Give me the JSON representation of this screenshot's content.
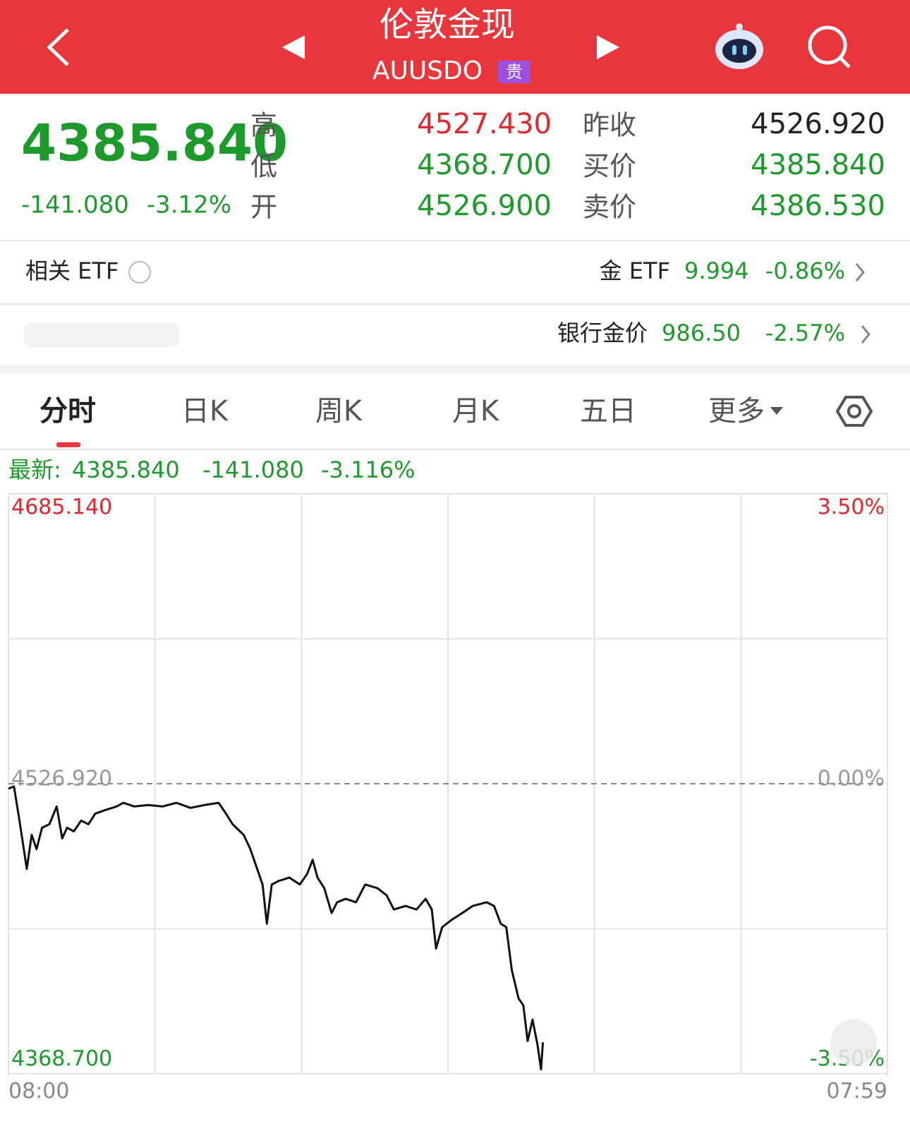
{
  "header": {
    "title": "伦敦金现",
    "code": "AUUSDO",
    "badge": "贵"
  },
  "quote": {
    "price": "4385.840",
    "change": "-141.080",
    "change_pct": "-3.12%",
    "stats": [
      {
        "label": "高",
        "value": "4527.430"
      },
      {
        "label": "低",
        "value": "4368.700"
      },
      {
        "label": "开",
        "value": "4526.900"
      },
      {
        "label": "昨收",
        "value": "4526.920"
      },
      {
        "label": "买价",
        "value": "4385.840"
      },
      {
        "label": "卖价",
        "value": "4386.530"
      }
    ]
  },
  "related": {
    "title": "相关 ETF",
    "items": [
      {
        "name": "金 ETF",
        "value": "9.994",
        "change": "-0.86%"
      },
      {
        "name": "银行金价",
        "value": "986.50",
        "change": "-2.57%"
      }
    ]
  },
  "tabs": [
    "分时",
    "日K",
    "周K",
    "月K",
    "五日",
    "更多"
  ],
  "latest": {
    "label": "最新:",
    "price": "4385.840",
    "change": "-141.080",
    "change_pct": "-3.116%"
  },
  "chart_data": {
    "type": "line",
    "color": "#111111",
    "x": [
      0,
      9,
      18,
      30,
      38,
      46,
      55,
      67,
      79,
      88,
      96,
      107,
      119,
      131,
      142,
      159,
      177,
      188,
      206,
      229,
      252,
      275,
      298,
      321,
      344,
      356,
      367,
      385,
      396,
      408,
      416,
      423,
      431,
      442,
      460,
      477,
      489,
      498,
      506,
      517,
      529,
      538,
      552,
      569,
      584,
      604,
      619,
      631,
      650,
      668,
      683,
      693,
      700,
      710,
      725,
      743,
      760,
      783,
      795,
      806,
      815,
      824,
      835,
      843,
      850,
      858,
      866,
      872,
      875
    ],
    "values": [
      4524.2,
      4525.4,
      4506.8,
      4480.4,
      4499.0,
      4491.2,
      4502.9,
      4504.8,
      4514.5,
      4497.1,
      4502.9,
      4500.9,
      4506.8,
      4504.8,
      4510.6,
      4512.6,
      4514.5,
      4516.5,
      4514.5,
      4515.3,
      4514.5,
      4516.5,
      4513.7,
      4515.3,
      4516.5,
      4510.6,
      4504.8,
      4499.0,
      4491.2,
      4479.6,
      4471.9,
      4450.5,
      4471.9,
      4473.8,
      4475.7,
      4471.9,
      4477.7,
      4485.4,
      4475.7,
      4469.9,
      4456.3,
      4462.2,
      4464.1,
      4462.2,
      4471.9,
      4469.9,
      4466.0,
      4458.3,
      4460.2,
      4458.3,
      4464.1,
      4458.3,
      4437.0,
      4448.6,
      4452.5,
      4456.3,
      4460.2,
      4462.2,
      4460.2,
      4450.5,
      4448.6,
      4425.3,
      4409.8,
      4405.9,
      4386.5,
      4398.2,
      4384.6,
      4371.0,
      4385.8
    ],
    "xlim": [
      0,
      1439
    ],
    "xticks": [
      {
        "value": 0,
        "label": "08:00"
      },
      {
        "value": 1439,
        "label": "07:59"
      }
    ],
    "ylim": [
      4368.7,
      4685.14
    ],
    "yticks": [
      {
        "value": 4368.7,
        "label": "4368.700"
      },
      {
        "value": 4526.92,
        "label": "4526.920"
      },
      {
        "value": 4685.14,
        "label": "4685.140"
      }
    ],
    "y2lim": [
      -3.5,
      3.5
    ],
    "y2ticks": [
      {
        "value": -3.5,
        "label": "-3.50%"
      },
      {
        "value": 0,
        "label": "0.00%"
      },
      {
        "value": 3.5,
        "label": "3.50%"
      }
    ]
  }
}
